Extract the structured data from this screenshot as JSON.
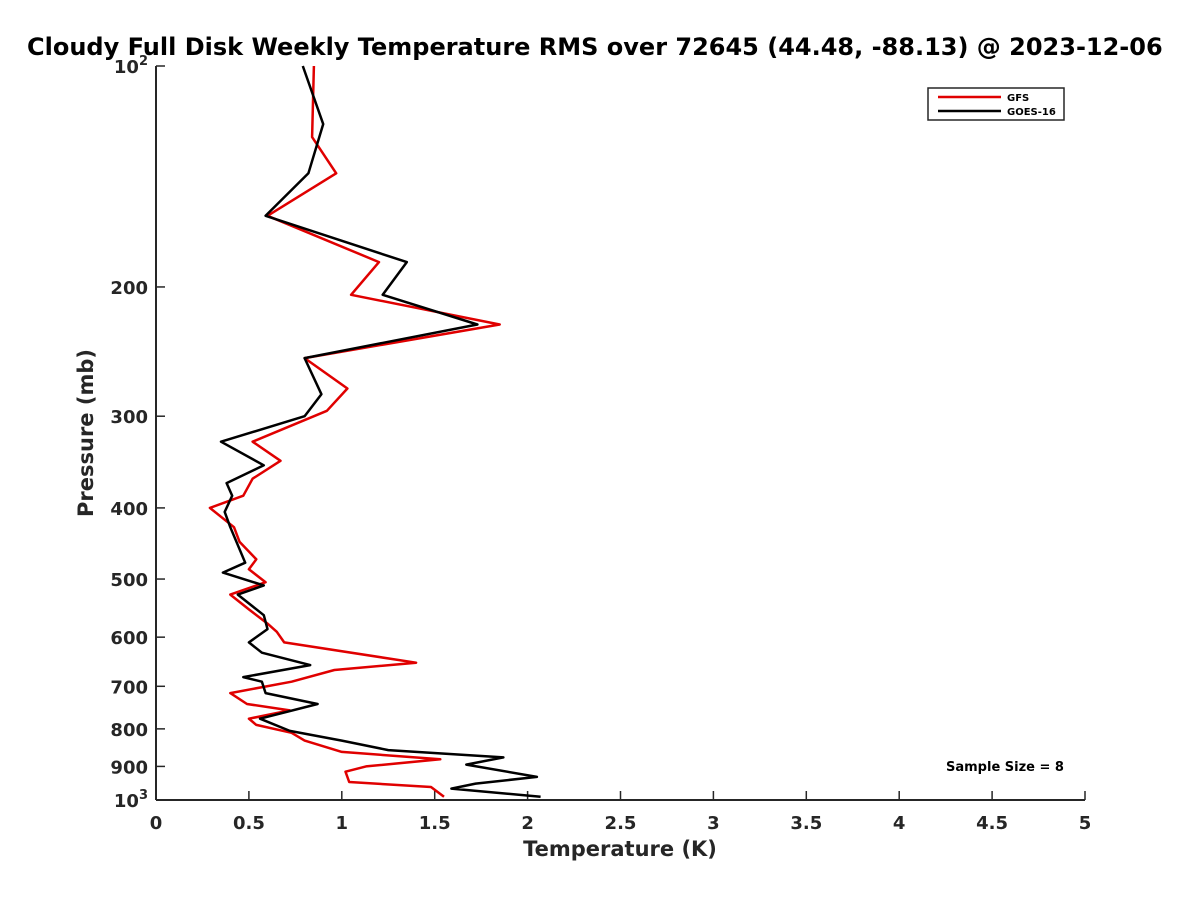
{
  "chart_data": {
    "type": "line",
    "title": "Cloudy Full Disk Weekly Temperature RMS over 72645 (44.48, -88.13) @ 2023-12-06",
    "xlabel": "Temperature (K)",
    "ylabel": "Pressure (mb)",
    "xlim": [
      0,
      5
    ],
    "ylim": [
      100,
      1000
    ],
    "y_scale": "log",
    "y_reversed": true,
    "grid": false,
    "x_ticks": [
      "0",
      "0.5",
      "1",
      "1.5",
      "2",
      "2.5",
      "3",
      "3.5",
      "4",
      "4.5",
      "5"
    ],
    "y_ticks": [
      {
        "value": 100,
        "base": "10",
        "exp": "2"
      },
      {
        "value": 200,
        "label": "200"
      },
      {
        "value": 300,
        "label": "300"
      },
      {
        "value": 400,
        "label": "400"
      },
      {
        "value": 500,
        "label": "500"
      },
      {
        "value": 600,
        "label": "600"
      },
      {
        "value": 700,
        "label": "700"
      },
      {
        "value": 800,
        "label": "800"
      },
      {
        "value": 900,
        "label": "900"
      },
      {
        "value": 1000,
        "base": "10",
        "exp": "3"
      }
    ],
    "legend_position": "top-right",
    "annotation": "Sample Size = 8",
    "series": [
      {
        "name": "GFS",
        "color": "#e00000",
        "points": [
          [
            0.85,
            100
          ],
          [
            0.84,
            125
          ],
          [
            0.97,
            140
          ],
          [
            0.6,
            160
          ],
          [
            1.2,
            185
          ],
          [
            1.05,
            205
          ],
          [
            1.85,
            225
          ],
          [
            0.8,
            250
          ],
          [
            1.03,
            275
          ],
          [
            0.92,
            295
          ],
          [
            0.52,
            325
          ],
          [
            0.67,
            345
          ],
          [
            0.52,
            365
          ],
          [
            0.47,
            385
          ],
          [
            0.29,
            400
          ],
          [
            0.42,
            425
          ],
          [
            0.45,
            445
          ],
          [
            0.54,
            470
          ],
          [
            0.5,
            485
          ],
          [
            0.59,
            505
          ],
          [
            0.4,
            525
          ],
          [
            0.5,
            550
          ],
          [
            0.6,
            575
          ],
          [
            0.65,
            590
          ],
          [
            0.69,
            610
          ],
          [
            1.4,
            650
          ],
          [
            0.96,
            665
          ],
          [
            0.73,
            690
          ],
          [
            0.4,
            715
          ],
          [
            0.49,
            740
          ],
          [
            0.72,
            755
          ],
          [
            0.5,
            775
          ],
          [
            0.54,
            790
          ],
          [
            0.73,
            810
          ],
          [
            0.8,
            830
          ],
          [
            1.0,
            860
          ],
          [
            1.53,
            880
          ],
          [
            1.13,
            900
          ],
          [
            1.02,
            915
          ],
          [
            1.04,
            945
          ],
          [
            1.48,
            960
          ],
          [
            1.55,
            990
          ]
        ]
      },
      {
        "name": "GOES-16",
        "color": "#000000",
        "points": [
          [
            0.79,
            100
          ],
          [
            0.9,
            120
          ],
          [
            0.82,
            140
          ],
          [
            0.59,
            160
          ],
          [
            1.35,
            185
          ],
          [
            1.22,
            205
          ],
          [
            1.73,
            225
          ],
          [
            0.8,
            250
          ],
          [
            0.89,
            280
          ],
          [
            0.8,
            300
          ],
          [
            0.35,
            325
          ],
          [
            0.58,
            350
          ],
          [
            0.38,
            370
          ],
          [
            0.41,
            385
          ],
          [
            0.37,
            405
          ],
          [
            0.4,
            425
          ],
          [
            0.48,
            475
          ],
          [
            0.36,
            490
          ],
          [
            0.58,
            510
          ],
          [
            0.44,
            525
          ],
          [
            0.58,
            560
          ],
          [
            0.6,
            585
          ],
          [
            0.5,
            610
          ],
          [
            0.57,
            630
          ],
          [
            0.83,
            655
          ],
          [
            0.47,
            680
          ],
          [
            0.57,
            690
          ],
          [
            0.59,
            715
          ],
          [
            0.87,
            740
          ],
          [
            0.56,
            775
          ],
          [
            0.72,
            805
          ],
          [
            1.0,
            830
          ],
          [
            1.25,
            855
          ],
          [
            1.87,
            875
          ],
          [
            1.67,
            895
          ],
          [
            2.05,
            930
          ],
          [
            1.72,
            950
          ],
          [
            1.59,
            965
          ],
          [
            2.07,
            990
          ]
        ]
      }
    ]
  }
}
